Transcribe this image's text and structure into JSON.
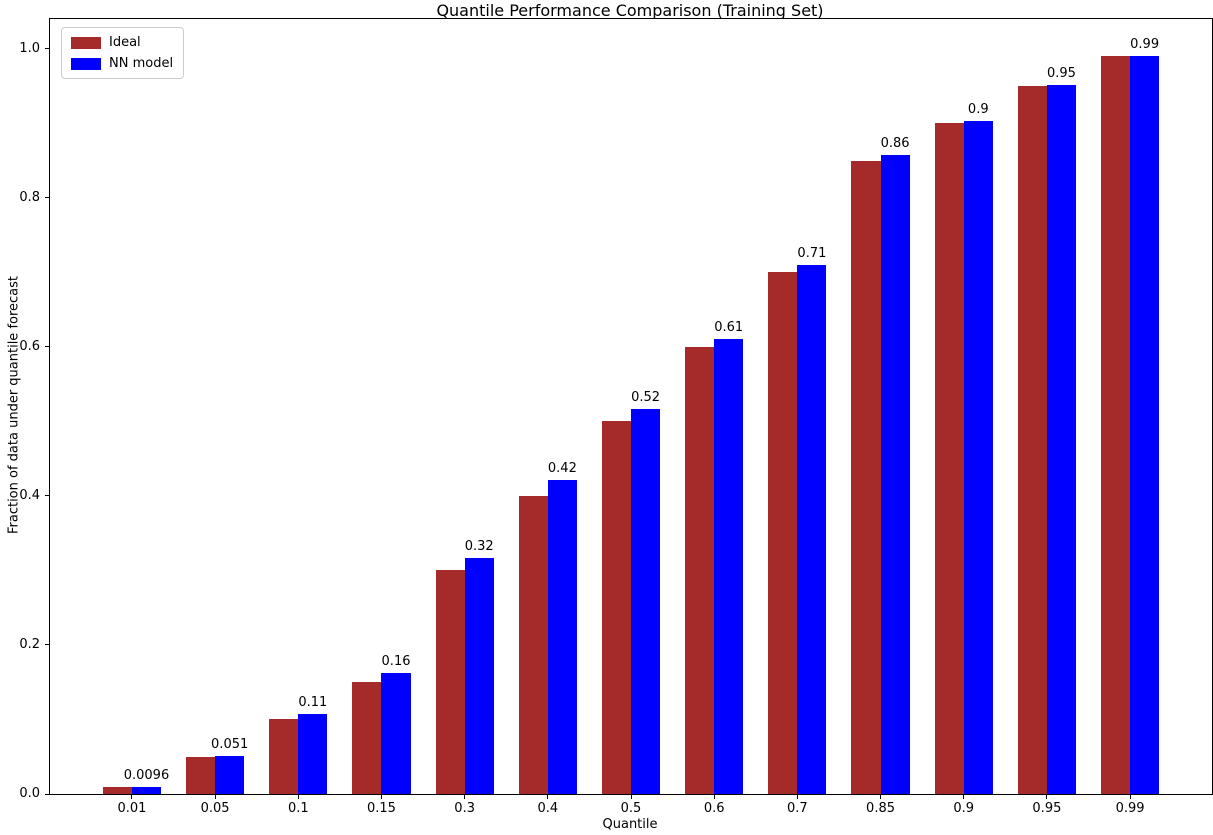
{
  "chart_data": {
    "type": "bar",
    "title": "Quantile Performance Comparison (Training Set)",
    "xlabel": "Quantile",
    "ylabel": "Fraction of data under quantile forecast",
    "categories": [
      "0.01",
      "0.05",
      "0.1",
      "0.15",
      "0.3",
      "0.4",
      "0.5",
      "0.6",
      "0.7",
      "0.85",
      "0.9",
      "0.95",
      "0.99"
    ],
    "series": [
      {
        "name": "Ideal",
        "color": "#a52a2a",
        "values": [
          0.01,
          0.05,
          0.1,
          0.15,
          0.3,
          0.4,
          0.5,
          0.6,
          0.7,
          0.85,
          0.9,
          0.95,
          0.99
        ]
      },
      {
        "name": "NN model",
        "color": "#0000ff",
        "values": [
          0.0096,
          0.051,
          0.107,
          0.163,
          0.317,
          0.422,
          0.517,
          0.611,
          0.71,
          0.858,
          0.903,
          0.951,
          0.99
        ]
      }
    ],
    "bar_labels": [
      "0.0096",
      "0.051",
      "0.11",
      "0.16",
      "0.32",
      "0.42",
      "0.52",
      "0.61",
      "0.71",
      "0.86",
      "0.9",
      "0.95",
      "0.99"
    ],
    "yticks": [
      "0.0",
      "0.2",
      "0.4",
      "0.6",
      "0.8",
      "1.0"
    ],
    "ytick_values": [
      0.0,
      0.2,
      0.4,
      0.6,
      0.8,
      1.0
    ],
    "ylim": [
      0,
      1.04
    ],
    "grid": false,
    "legend_position": "upper left",
    "text_color": "#000000",
    "background_color": "#ffffff"
  }
}
